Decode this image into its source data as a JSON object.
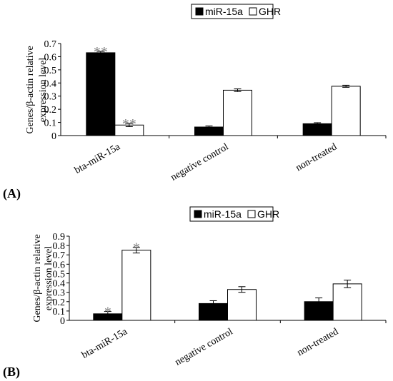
{
  "chart_data": [
    {
      "type": "bar",
      "panel_label": "(A)",
      "ylabel_lines": [
        "Genes/β-actin relative",
        "expression level"
      ],
      "categories": [
        "bta-miR-15a",
        "negative control",
        "non-treated"
      ],
      "series": [
        {
          "name": "miR-15a",
          "values": [
            0.63,
            0.065,
            0.09
          ],
          "errors": [
            0.01,
            0.008,
            0.008
          ],
          "fill": "#000000",
          "significance": [
            "**",
            "",
            ""
          ]
        },
        {
          "name": "GHR",
          "values": [
            0.08,
            0.345,
            0.375
          ],
          "errors": [
            0.012,
            0.01,
            0.008
          ],
          "fill": "#ffffff",
          "significance": [
            "**",
            "",
            ""
          ]
        }
      ],
      "ylim": [
        0,
        0.7
      ],
      "yticks": [
        "0",
        "0.1",
        "0.2",
        "0.3",
        "0.4",
        "0.5",
        "0.6",
        "0.7"
      ],
      "legend_position": "top-right",
      "grid": false
    },
    {
      "type": "bar",
      "panel_label": "(B)",
      "ylabel_lines": [
        "Genes/β-actin relative",
        "expression level"
      ],
      "categories": [
        "bta-miR-15a",
        "negative control",
        "non-treated"
      ],
      "series": [
        {
          "name": "miR-15a",
          "values": [
            0.07,
            0.18,
            0.2
          ],
          "errors": [
            0.025,
            0.03,
            0.04
          ],
          "fill": "#000000",
          "significance": [
            "*",
            "",
            ""
          ]
        },
        {
          "name": "GHR",
          "values": [
            0.75,
            0.33,
            0.39
          ],
          "errors": [
            0.03,
            0.03,
            0.04
          ],
          "fill": "#ffffff",
          "significance": [
            "*",
            "",
            ""
          ]
        }
      ],
      "ylim": [
        0,
        0.9
      ],
      "yticks": [
        "0",
        "0.1",
        "0.2",
        "0.3",
        "0.4",
        "0.5",
        "0.6",
        "0.7",
        "0.8",
        "0.9"
      ],
      "legend_position": "top-right",
      "grid": false
    }
  ]
}
